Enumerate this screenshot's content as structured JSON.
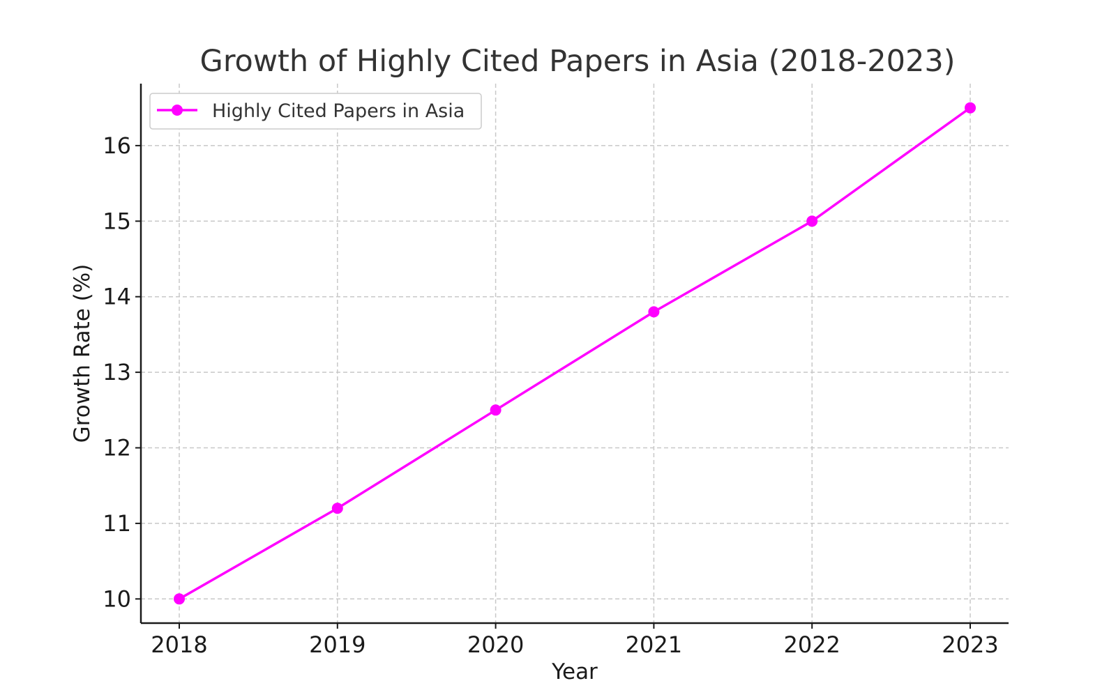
{
  "chart_data": {
    "type": "line",
    "title": "Growth of Highly Cited Papers in Asia (2018-2023)",
    "xlabel": "Year",
    "ylabel": "Growth Rate (%)",
    "x": [
      "2018",
      "2019",
      "2020",
      "2021",
      "2022",
      "2023"
    ],
    "yticks": [
      "10",
      "11",
      "12",
      "13",
      "14",
      "15",
      "16"
    ],
    "ylim": [
      9.68,
      16.82
    ],
    "grid": true,
    "legend_position": "top-left",
    "series": [
      {
        "name": "Highly Cited Papers in Asia",
        "color": "#ff00ff",
        "marker": "circle",
        "values": [
          10.0,
          11.2,
          12.5,
          13.8,
          15.0,
          16.5
        ]
      }
    ]
  }
}
